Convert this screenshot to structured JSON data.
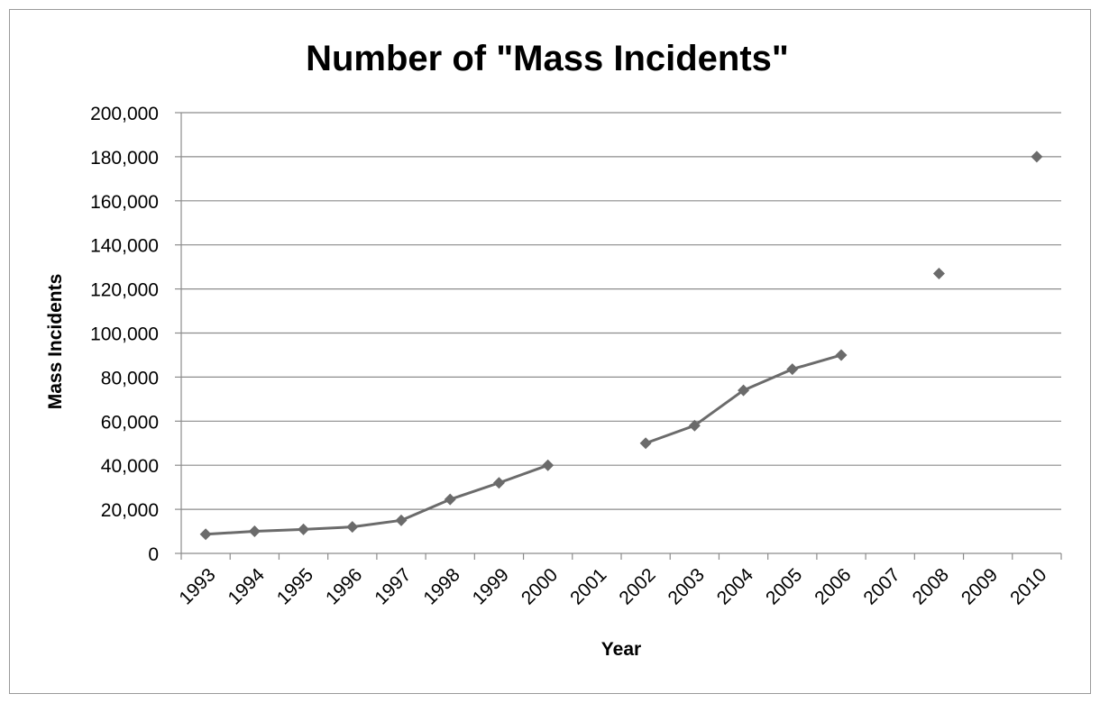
{
  "chart_data": {
    "type": "line",
    "title": "Number of \"Mass Incidents\"",
    "xlabel": "Year",
    "ylabel": "Mass Incidents",
    "categories": [
      "1993",
      "1994",
      "1995",
      "1996",
      "1997",
      "1998",
      "1999",
      "2000",
      "2001",
      "2002",
      "2003",
      "2004",
      "2005",
      "2006",
      "2007",
      "2008",
      "2009",
      "2010"
    ],
    "series": [
      {
        "values": [
          8700,
          10000,
          10900,
          12000,
          15000,
          24500,
          32000,
          40000,
          null,
          50000,
          58000,
          74000,
          83600,
          90000,
          null,
          127000,
          null,
          180000
        ]
      }
    ],
    "ylim": [
      0,
      200000
    ],
    "yticks": [
      0,
      20000,
      40000,
      60000,
      80000,
      100000,
      120000,
      140000,
      160000,
      180000,
      200000
    ],
    "ytick_labels": [
      "0",
      "20,000",
      "40,000",
      "60,000",
      "80,000",
      "100,000",
      "120,000",
      "140,000",
      "160,000",
      "180,000",
      "200,000"
    ],
    "grid": true,
    "legend": "none",
    "colors": {
      "series": "#6b6b6b",
      "grid": "#8c8c8c",
      "frame": "#9a9a9a"
    }
  }
}
